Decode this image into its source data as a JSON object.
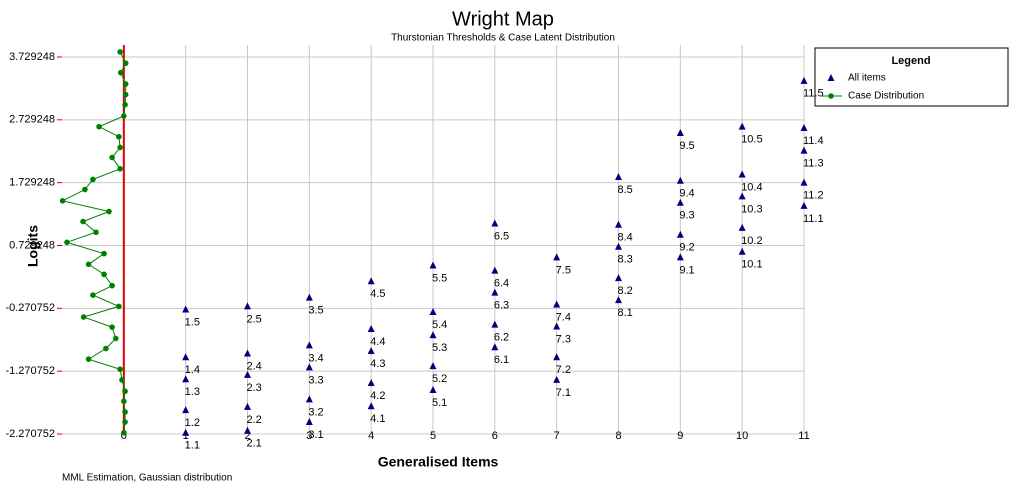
{
  "chart_data": {
    "type": "scatter",
    "title": "Wright Map",
    "subtitle": "Thurstonian Thresholds & Case Latent Distribution",
    "xlabel": "Generalised Items",
    "ylabel": "Logits",
    "footnote": "MML Estimation, Gaussian distribution",
    "xlim": [
      -1,
      11
    ],
    "xticks": [
      0,
      1,
      2,
      3,
      4,
      5,
      6,
      7,
      8,
      9,
      10,
      11
    ],
    "ylim": [
      -2.270752,
      3.92
    ],
    "yticks": [
      -2.270752,
      -1.270752,
      -0.270752,
      0.729248,
      1.729248,
      2.729248,
      3.729248
    ],
    "grid": true,
    "zero_line_color": "#e00000",
    "legend": {
      "title": "Legend",
      "position": "right"
    },
    "series": [
      {
        "name": "All items",
        "color": "#000080",
        "marker": "triangle",
        "x": [
          1,
          1,
          1,
          1,
          1,
          2,
          2,
          2,
          2,
          2,
          3,
          3,
          3,
          3,
          3,
          4,
          4,
          4,
          4,
          4,
          5,
          5,
          5,
          5,
          5,
          6,
          6,
          6,
          6,
          6,
          7,
          7,
          7,
          7,
          7,
          8,
          8,
          8,
          8,
          8,
          9,
          9,
          9,
          9,
          9,
          10,
          10,
          10,
          10,
          10,
          11,
          11,
          11,
          11,
          11
        ],
        "values": [
          -2.25,
          -1.89,
          -1.4,
          -1.05,
          -0.29,
          -2.22,
          -1.84,
          -1.33,
          -0.99,
          -0.24,
          -2.08,
          -1.72,
          -1.21,
          -0.86,
          -0.1,
          -1.83,
          -1.46,
          -0.95,
          -0.6,
          0.16,
          -1.57,
          -1.19,
          -0.7,
          -0.33,
          0.41,
          -0.89,
          -0.53,
          -0.02,
          0.33,
          1.08,
          -1.41,
          -1.05,
          -0.56,
          -0.21,
          0.54,
          -0.14,
          0.21,
          0.71,
          1.06,
          1.82,
          0.54,
          0.9,
          1.41,
          1.76,
          2.52,
          0.63,
          1.01,
          1.51,
          1.86,
          2.62,
          1.36,
          1.73,
          2.24,
          2.6,
          3.35
        ],
        "point_labels": [
          "1.1",
          "1.2",
          "1.3",
          "1.4",
          "1.5",
          "2.1",
          "2.2",
          "2.3",
          "2.4",
          "2.5",
          "3.1",
          "3.2",
          "3.3",
          "3.4",
          "3.5",
          "4.1",
          "4.2",
          "4.3",
          "4.4",
          "4.5",
          "5.1",
          "5.2",
          "5.3",
          "5.4",
          "5.5",
          "6.1",
          "6.2",
          "6.3",
          "6.4",
          "6.5",
          "7.1",
          "7.2",
          "7.3",
          "7.4",
          "7.5",
          "8.1",
          "8.2",
          "8.3",
          "8.4",
          "8.5",
          "9.1",
          "9.2",
          "9.3",
          "9.4",
          "9.5",
          "10.1",
          "10.2",
          "10.3",
          "10.4",
          "10.5",
          "11.1",
          "11.2",
          "11.3",
          "11.4",
          "11.5"
        ]
      },
      {
        "name": "Case Distribution",
        "color": "#008000",
        "marker": "circle",
        "line": true,
        "x": [
          -0.06,
          0.03,
          -0.05,
          0.03,
          0.03,
          0.02,
          0,
          -0.4,
          -0.08,
          -0.06,
          -0.19,
          -0.06,
          -0.5,
          -0.63,
          -0.99,
          -0.24,
          -0.66,
          -0.45,
          -0.92,
          -0.32,
          -0.57,
          -0.32,
          -0.19,
          -0.5,
          -0.08,
          -0.65,
          -0.19,
          -0.13,
          -0.29,
          -0.57,
          -0.06,
          -0.03,
          0.02,
          0,
          0.02,
          0.02,
          0
        ],
        "values": [
          3.81,
          3.63,
          3.48,
          3.3,
          3.13,
          2.97,
          2.79,
          2.62,
          2.46,
          2.29,
          2.13,
          1.95,
          1.78,
          1.62,
          1.44,
          1.27,
          1.11,
          0.94,
          0.78,
          0.6,
          0.43,
          0.27,
          0.09,
          -0.06,
          -0.24,
          -0.41,
          -0.57,
          -0.75,
          -0.91,
          -1.08,
          -1.24,
          -1.41,
          -1.59,
          -1.75,
          -1.92,
          -2.08,
          -2.25
        ]
      }
    ]
  }
}
